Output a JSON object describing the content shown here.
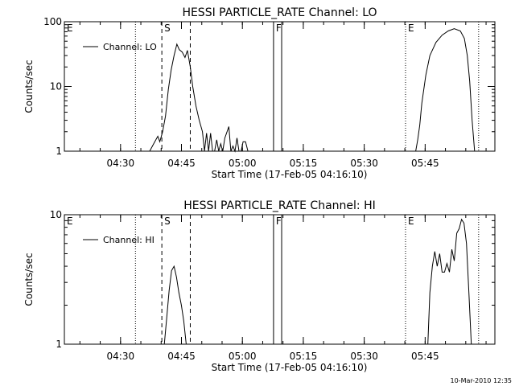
{
  "footer_stamp": "10-Mar-2010 12:35",
  "chart_data": [
    {
      "type": "line",
      "title": "HESSI PARTICLE_RATE Channel: LO",
      "xlabel": "Start Time (17-Feb-05 04:16:10)",
      "ylabel": "Counts/sec",
      "yscale": "log",
      "ylim": [
        1,
        100
      ],
      "yticks": [
        1,
        10,
        100
      ],
      "ytick_labels": [
        "1",
        "10",
        "100"
      ],
      "xlim_minutes": [
        0,
        106
      ],
      "xticks_minutes": [
        13.83,
        28.83,
        43.83,
        58.83,
        73.83,
        88.83
      ],
      "xtick_labels": [
        "04:30",
        "04:45",
        "05:00",
        "05:15",
        "05:30",
        "05:45"
      ],
      "grid": false,
      "legend": {
        "placement": "top-left",
        "entries": [
          "Channel: LO"
        ]
      },
      "event_markers": [
        {
          "label": "E",
          "x_minutes": 0,
          "style": "label-only"
        },
        {
          "label": "",
          "x_minutes": 17.5,
          "style": "dotted"
        },
        {
          "label": "S",
          "x_minutes": 24.0,
          "style": "dashed"
        },
        {
          "label": "",
          "x_minutes": 31.0,
          "style": "dashed"
        },
        {
          "label": "F",
          "x_minutes": 51.5,
          "style": "solid"
        },
        {
          "label": "",
          "x_minutes": 53.5,
          "style": "solid"
        },
        {
          "label": "E",
          "x_minutes": 84.0,
          "style": "dotted"
        },
        {
          "label": "",
          "x_minutes": 102.0,
          "style": "dotted"
        }
      ],
      "series": [
        {
          "name": "Channel: LO",
          "segments": [
            {
              "x": [
                21.0,
                22.0,
                23.0,
                23.5,
                24.2,
                24.9,
                25.6,
                26.3,
                27.0,
                27.7,
                28.3,
                29.0,
                29.7,
                30.3,
                31.0,
                31.6,
                32.4,
                33.2,
                34.0,
                34.5,
                35.0,
                35.5,
                36.0,
                36.5,
                37.0,
                37.5,
                38.0,
                38.5,
                39.0,
                39.5,
                40.5,
                41.0,
                41.5,
                42.0,
                42.5,
                43.0,
                43.5,
                44.0,
                44.6,
                45.2
              ],
              "y": [
                1.0,
                1.3,
                1.7,
                1.4,
                2.0,
                3.5,
                9.0,
                18.0,
                30.0,
                45.0,
                37.0,
                34.0,
                28.0,
                36.0,
                20.0,
                10.0,
                5.0,
                3.0,
                2.0,
                1.0,
                1.9,
                1.0,
                1.9,
                1.0,
                1.0,
                1.5,
                1.0,
                1.3,
                1.0,
                1.6,
                2.4,
                1.0,
                1.2,
                1.0,
                1.6,
                1.0,
                1.0,
                1.4,
                1.4,
                1.0
              ]
            },
            {
              "x": [
                86.5,
                87.0,
                87.5,
                88.0,
                89.0,
                90.0,
                91.5,
                93.0,
                94.5,
                96.0,
                97.5,
                98.5,
                99.2,
                99.8,
                100.4,
                101.0
              ],
              "y": [
                1.0,
                1.5,
                2.5,
                5.5,
                15.0,
                30.0,
                48.0,
                62.0,
                72.0,
                78.0,
                72.0,
                55.0,
                30.0,
                12.0,
                3.0,
                1.0
              ]
            }
          ]
        }
      ]
    },
    {
      "type": "line",
      "title": "HESSI PARTICLE_RATE Channel: HI",
      "xlabel": "Start Time (17-Feb-05 04:16:10)",
      "ylabel": "Counts/sec",
      "yscale": "log",
      "ylim": [
        1,
        10
      ],
      "yticks": [
        1,
        10
      ],
      "ytick_labels": [
        "1",
        "10"
      ],
      "xlim_minutes": [
        0,
        106
      ],
      "xticks_minutes": [
        13.83,
        28.83,
        43.83,
        58.83,
        73.83,
        88.83
      ],
      "xtick_labels": [
        "04:30",
        "04:45",
        "05:00",
        "05:15",
        "05:30",
        "05:45"
      ],
      "grid": false,
      "legend": {
        "placement": "top-left",
        "entries": [
          "Channel: HI"
        ]
      },
      "event_markers": [
        {
          "label": "E",
          "x_minutes": 0,
          "style": "label-only"
        },
        {
          "label": "",
          "x_minutes": 17.5,
          "style": "dotted"
        },
        {
          "label": "S",
          "x_minutes": 24.0,
          "style": "dashed"
        },
        {
          "label": "",
          "x_minutes": 31.0,
          "style": "dashed"
        },
        {
          "label": "F",
          "x_minutes": 51.5,
          "style": "solid"
        },
        {
          "label": "",
          "x_minutes": 53.5,
          "style": "solid"
        },
        {
          "label": "E",
          "x_minutes": 84.0,
          "style": "dotted"
        },
        {
          "label": "",
          "x_minutes": 102.0,
          "style": "dotted"
        }
      ],
      "series": [
        {
          "name": "Channel: HI",
          "segments": [
            {
              "x": [
                24.6,
                25.2,
                25.8,
                26.4,
                27.0,
                27.6,
                28.2,
                28.8,
                29.4,
                30.0
              ],
              "y": [
                1.0,
                1.6,
                2.6,
                3.7,
                4.0,
                3.3,
                2.5,
                2.0,
                1.5,
                1.0
              ]
            },
            {
              "x": [
                89.5,
                90.0,
                90.6,
                91.2,
                91.8,
                92.4,
                93.0,
                93.6,
                94.2,
                94.8,
                95.4,
                96.0,
                96.6,
                97.2,
                97.8,
                98.4,
                99.0,
                99.6,
                100.2
              ],
              "y": [
                1.0,
                2.5,
                4.0,
                5.2,
                4.0,
                5.0,
                3.6,
                3.6,
                4.2,
                3.6,
                5.4,
                4.4,
                7.2,
                7.8,
                9.2,
                8.6,
                6.0,
                2.5,
                1.0
              ]
            }
          ]
        }
      ]
    }
  ]
}
